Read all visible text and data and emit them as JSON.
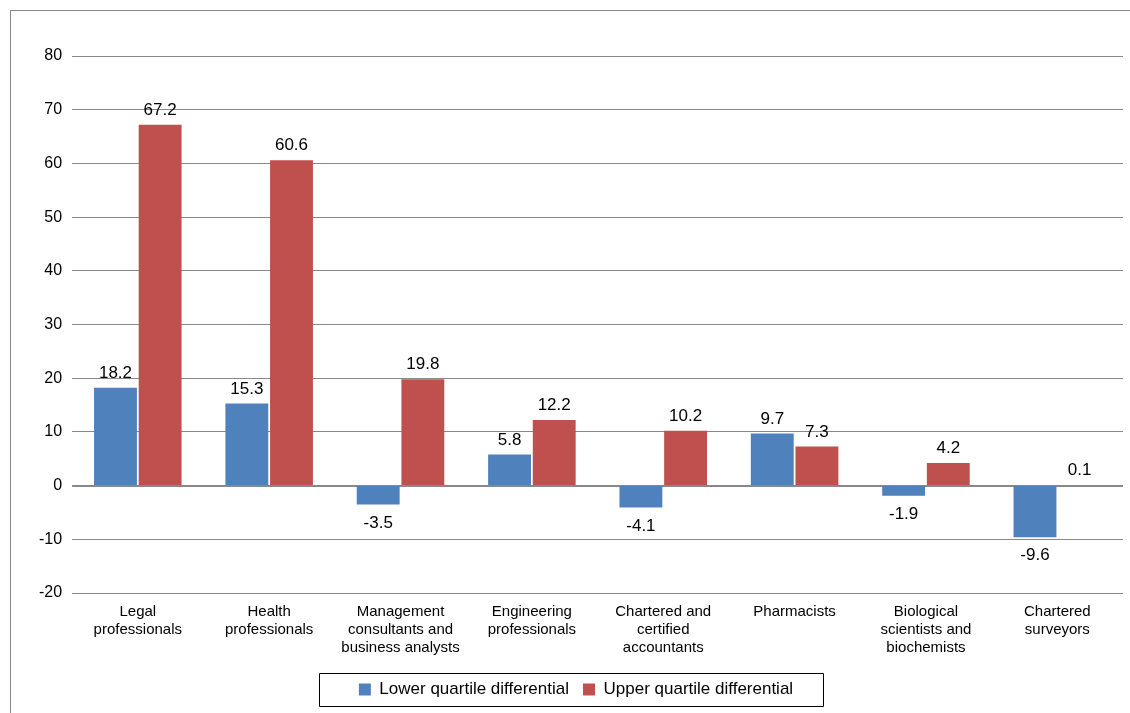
{
  "chart_data": {
    "type": "bar",
    "categories": [
      "Legal professionals",
      "Health professionals",
      "Management consultants and business analysts",
      "Engineering professionals",
      "Chartered and certified accountants",
      "Pharmacists",
      "Biological scientists and biochemists",
      "Chartered surveyors"
    ],
    "series": [
      {
        "name": "Lower quartile differential",
        "color": "#4f81bd",
        "values": [
          18.2,
          15.3,
          -3.5,
          5.8,
          -4.1,
          9.7,
          -1.9,
          -9.6
        ]
      },
      {
        "name": "Upper quartile differential",
        "color": "#c0504d",
        "values": [
          67.2,
          60.6,
          19.8,
          12.2,
          10.2,
          7.3,
          4.2,
          0.1
        ]
      }
    ],
    "ylim": [
      -20,
      80
    ],
    "yticks": [
      -20,
      -10,
      0,
      10,
      20,
      30,
      40,
      50,
      60,
      70,
      80
    ],
    "grid": "y",
    "legend": "bottom",
    "data_labels": true
  }
}
